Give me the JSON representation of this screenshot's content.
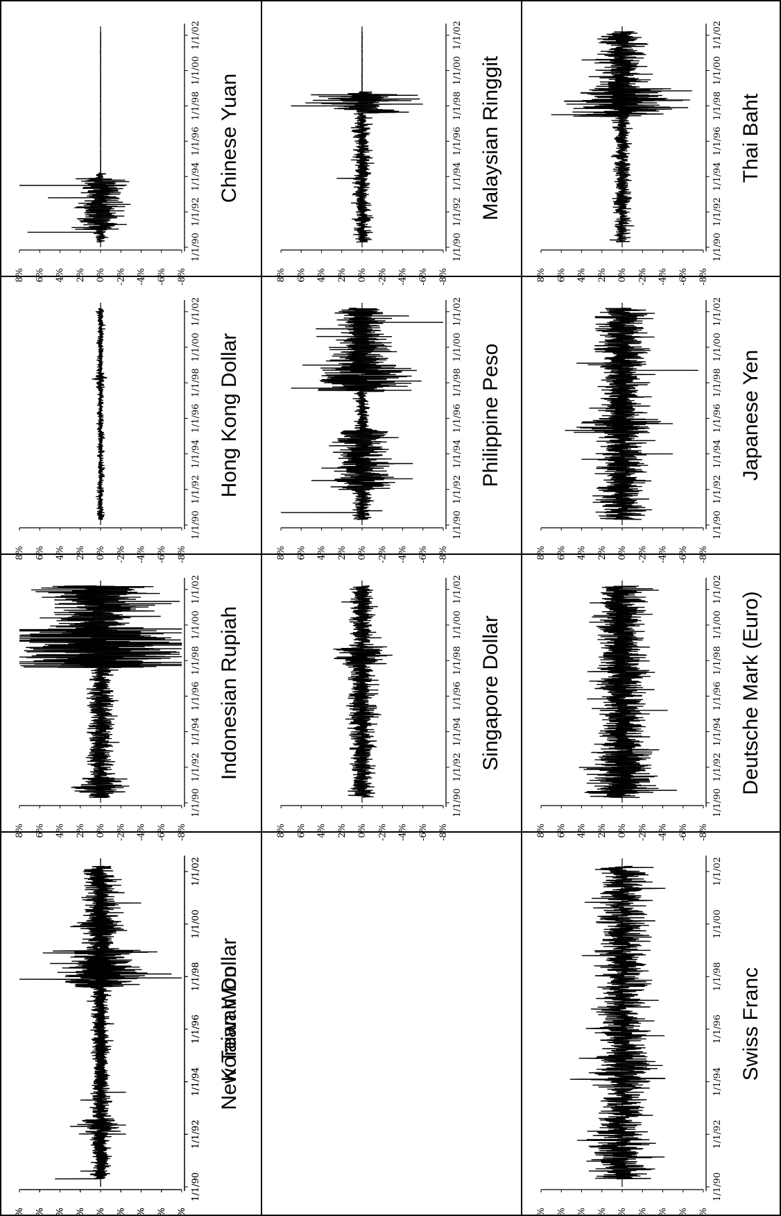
{
  "chart_data": [
    {
      "type": "line",
      "title": "Chinese Yuan",
      "col": 0,
      "row": 0,
      "ylim": [
        -0.08,
        0.08
      ],
      "amp": 0.003,
      "seed": 11,
      "spikes": [
        [
          1990.85,
          0.072
        ],
        [
          1990.85,
          -0.003
        ],
        [
          1992.15,
          0.012
        ],
        [
          1992.55,
          -0.02
        ],
        [
          1992.8,
          0.052
        ],
        [
          1993.1,
          -0.02
        ],
        [
          1993.5,
          0.08
        ],
        [
          1993.55,
          -0.005
        ]
      ],
      "bursts": [
        [
          1991.0,
          1993.9,
          3.5
        ]
      ],
      "quiet": [
        [
          1994.2,
          2002.5,
          0.05
        ]
      ]
    },
    {
      "type": "line",
      "title": "Hong Kong Dollar",
      "col": 1,
      "row": 0,
      "ylim": [
        -0.08,
        0.08
      ],
      "amp": 0.0015,
      "seed": 23,
      "spikes": [],
      "bursts": [
        [
          1997.6,
          1998.4,
          1.8
        ]
      ],
      "quiet": []
    },
    {
      "type": "line",
      "title": "Indonesian Rupiah",
      "col": 2,
      "row": 0,
      "ylim": [
        -0.08,
        0.08
      ],
      "amp": 0.006,
      "seed": 37,
      "spikes": [
        [
          1997.9,
          -0.08
        ],
        [
          1998.2,
          0.08
        ],
        [
          1998.5,
          -0.06
        ],
        [
          2001.2,
          -0.07
        ],
        [
          2000.4,
          0.06
        ],
        [
          1998.9,
          0.055
        ]
      ],
      "bursts": [
        [
          1990.6,
          1991.4,
          2.0
        ],
        [
          1997.6,
          1999.8,
          7.5
        ],
        [
          1999.8,
          2002.2,
          4.0
        ]
      ],
      "quiet": []
    },
    {
      "type": "line",
      "title": "Korean Won",
      "col": 3,
      "row": 0,
      "ylim": [
        -0.08,
        0.08
      ],
      "amp": 0.004,
      "seed": 41,
      "spikes": [
        [
          1997.9,
          0.08
        ],
        [
          1997.95,
          -0.08
        ],
        [
          1998.1,
          -0.07
        ],
        [
          1992.3,
          0.03
        ],
        [
          1992.35,
          -0.025
        ],
        [
          2000.8,
          -0.04
        ],
        [
          1990.6,
          0.02
        ],
        [
          1998.5,
          0.05
        ]
      ],
      "bursts": [
        [
          1997.6,
          1999.0,
          5.0
        ],
        [
          1999.0,
          2002.2,
          2.2
        ],
        [
          1992.0,
          1992.6,
          2.5
        ]
      ],
      "quiet": []
    },
    {
      "type": "line",
      "title": "Malaysian Ringgit",
      "col": 0,
      "row": 1,
      "ylim": [
        -0.08,
        0.08
      ],
      "amp": 0.004,
      "seed": 53,
      "spikes": [
        [
          1998.0,
          0.07
        ],
        [
          1998.1,
          -0.06
        ],
        [
          1998.6,
          -0.055
        ],
        [
          1993.9,
          0.025
        ]
      ],
      "bursts": [
        [
          1997.6,
          1998.7,
          5.0
        ]
      ],
      "quiet": [
        [
          1998.8,
          2002.5,
          0.05
        ]
      ]
    },
    {
      "type": "line",
      "title": "Philippine Peso",
      "col": 1,
      "row": 1,
      "ylim": [
        -0.08,
        0.08
      ],
      "amp": 0.005,
      "seed": 61,
      "spikes": [
        [
          1990.7,
          0.08
        ],
        [
          1990.8,
          -0.02
        ],
        [
          1992.5,
          0.05
        ],
        [
          1992.6,
          -0.05
        ],
        [
          1993.2,
          0.04
        ],
        [
          1997.7,
          0.07
        ],
        [
          1997.8,
          -0.045
        ],
        [
          2001.4,
          -0.08
        ],
        [
          2000.6,
          0.045
        ]
      ],
      "bursts": [
        [
          1992.0,
          1995.3,
          2.5
        ],
        [
          1997.5,
          1999.0,
          4.5
        ],
        [
          1999.0,
          2002.2,
          2.5
        ]
      ],
      "quiet": [
        [
          1995.6,
          1997.4,
          0.6
        ]
      ]
    },
    {
      "type": "line",
      "title": "Singapore Dollar",
      "col": 2,
      "row": 1,
      "ylim": [
        -0.08,
        0.08
      ],
      "amp": 0.006,
      "seed": 71,
      "spikes": [
        [
          1998.2,
          0.025
        ],
        [
          1998.3,
          -0.03
        ]
      ],
      "bursts": [
        [
          1997.8,
          1998.8,
          2.0
        ]
      ],
      "quiet": []
    },
    {
      "type": "line",
      "title": "New Taiwan Dollar",
      "col": 3,
      "row": 0,
      "ylim": [
        -0.08,
        0.08
      ],
      "amp": 0.004,
      "seed": 83,
      "spikes": [
        [
          1990.3,
          0.045
        ],
        [
          1998.0,
          0.035
        ],
        [
          1999.9,
          0.03
        ],
        [
          2000.8,
          -0.03
        ],
        [
          1998.4,
          -0.03
        ],
        [
          1993.3,
          0.02
        ],
        [
          1993.6,
          -0.025
        ]
      ],
      "bursts": [
        [
          1997.6,
          1998.8,
          2.5
        ],
        [
          1999.6,
          2000.2,
          2.5
        ]
      ],
      "quiet": []
    },
    {
      "type": "line",
      "title": "Thai Baht",
      "col": 0,
      "row": 2,
      "ylim": [
        -0.08,
        0.08
      ],
      "amp": 0.004,
      "seed": 97,
      "spikes": [
        [
          1997.5,
          0.07
        ],
        [
          1997.9,
          -0.065
        ],
        [
          1998.1,
          0.055
        ],
        [
          1998.3,
          -0.06
        ],
        [
          2000.6,
          0.04
        ]
      ],
      "bursts": [
        [
          1997.4,
          1999.0,
          6.0
        ],
        [
          1999.0,
          2002.2,
          2.5
        ]
      ],
      "quiet": []
    },
    {
      "type": "line",
      "title": "Japanese Yen",
      "col": 1,
      "row": 2,
      "ylim": [
        -0.08,
        0.08
      ],
      "amp": 0.011,
      "seed": 103,
      "spikes": [
        [
          1998.7,
          -0.075
        ],
        [
          1995.5,
          0.045
        ],
        [
          1995.7,
          -0.05
        ],
        [
          1993.7,
          0.04
        ],
        [
          1994.0,
          -0.05
        ],
        [
          1999.1,
          0.045
        ]
      ],
      "bursts": [
        [
          1995.2,
          1996.0,
          1.6
        ]
      ],
      "quiet": []
    },
    {
      "type": "line",
      "title": "Deutsche Mark (Euro)",
      "col": 2,
      "row": 2,
      "ylim": [
        -0.08,
        0.08
      ],
      "amp": 0.011,
      "seed": 113,
      "spikes": [
        [
          1991.1,
          0.035
        ],
        [
          1991.5,
          -0.035
        ],
        [
          1995.2,
          -0.045
        ],
        [
          1995.3,
          0.03
        ],
        [
          2000.6,
          -0.03
        ]
      ],
      "bursts": [
        [
          1990.5,
          1993.0,
          1.4
        ]
      ],
      "quiet": []
    },
    {
      "type": "line",
      "title": "Swiss Franc",
      "col": 3,
      "row": 2,
      "ylim": [
        -0.08,
        0.08
      ],
      "amp": 0.012,
      "seed": 127,
      "spikes": [
        [
          1991.8,
          0.035
        ],
        [
          1994.1,
          0.04
        ],
        [
          1994.5,
          -0.035
        ],
        [
          1999.0,
          -0.028
        ],
        [
          2001.6,
          -0.03
        ]
      ],
      "bursts": [
        [
          1990.5,
          1992.2,
          1.3
        ],
        [
          1994.0,
          1995.0,
          1.4
        ]
      ],
      "quiet": []
    }
  ],
  "axis": {
    "ytick_labels": [
      "8%",
      "6%",
      "4%",
      "2%",
      "0%",
      "-2%",
      "-4%",
      "-6%",
      "-8%"
    ],
    "xtick_labels": [
      "1/1/90",
      "1/1/92",
      "1/1/94",
      "1/1/96",
      "1/1/98",
      "1/1/00",
      "1/1/02"
    ]
  }
}
